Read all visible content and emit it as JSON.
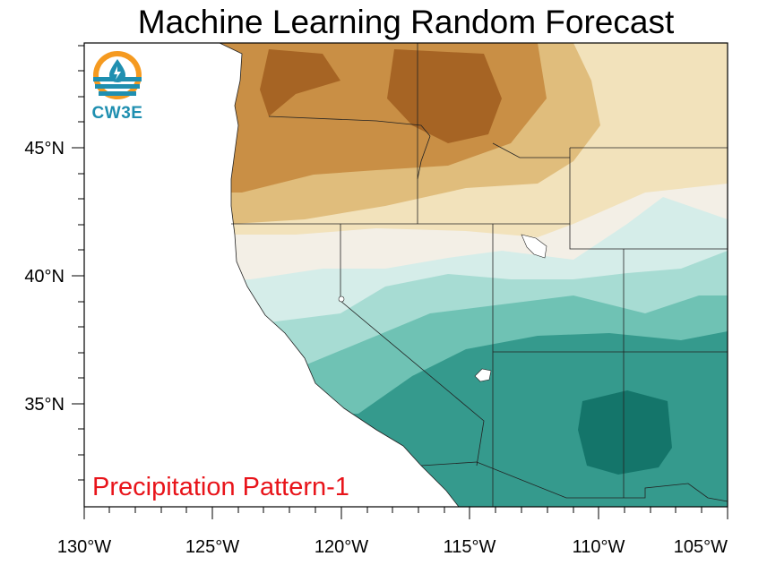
{
  "title": "Machine Learning Random Forecast",
  "subtitle_label": "Precipitation Pattern-1",
  "logo": {
    "text": "CW3E",
    "icon": "cw3e-water-drop-logo"
  },
  "map": {
    "projection": "cylindrical-equidistant",
    "lon_range": [
      -130,
      -105
    ],
    "lat_range": [
      31,
      49
    ],
    "x_ticks": [
      "130°W",
      "125°W",
      "120°W",
      "115°W",
      "110°W",
      "105°W"
    ],
    "y_ticks": [
      "35°N",
      "40°N",
      "45°N"
    ],
    "colors": {
      "dry_strong": "#a66424",
      "dry_medium": "#c98f45",
      "dry_light": "#e0bd7c",
      "dry_faint": "#f2e2bb",
      "neutral": "#f3efe6",
      "wet_faint": "#d5ede9",
      "wet_light": "#a7dcd3",
      "wet_medium": "#6fc2b4",
      "wet_strong": "#359a8d",
      "wet_deep": "#14756a",
      "label_red": "#e8141a",
      "logo_orange": "#f59a20",
      "logo_blue": "#1f8fb0"
    }
  }
}
